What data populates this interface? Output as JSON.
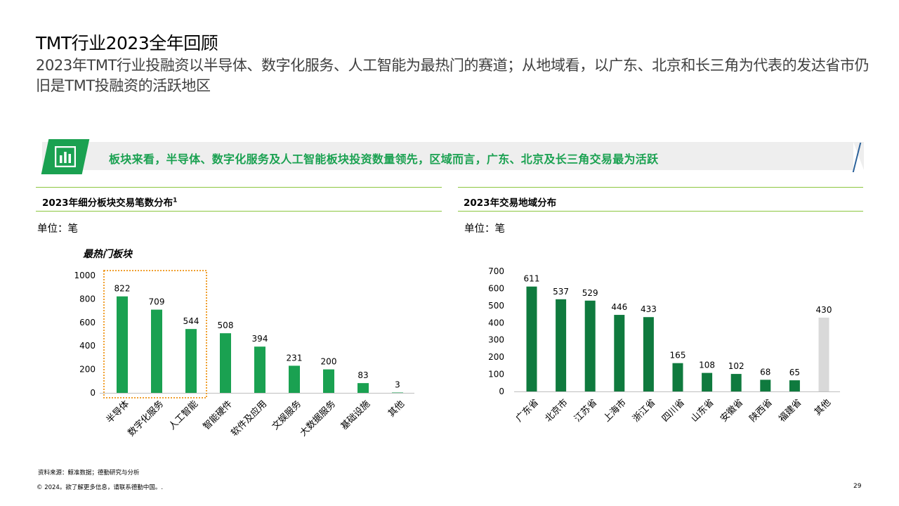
{
  "title": "TMT行业2023全年回顾",
  "subtitle": "2023年TMT行业投融资以半导体、数字化服务、人工智能为最热门的赛道；从地域看，以广东、北京和长三角为代表的发达省市仍旧是TMT投融资的活跃地区",
  "banner": {
    "text": "板块来看，半导体、数字化服务及人工智能板块投资数量领先，区域而言，广东、北京及长三角交易最为活跃",
    "icon": "bar-chart-icon"
  },
  "left_panel": {
    "title": "2023年细分板块交易笔数分布",
    "footnote_mark": "1",
    "unit": "单位：笔",
    "highlight_label": "最热门板块"
  },
  "right_panel": {
    "title": "2023年交易地域分布",
    "unit": "单位：笔"
  },
  "colors": {
    "brand_green": "#1aa151",
    "dark_green": "#0f7a3e",
    "other_gray": "#d9d9d9",
    "highlight_box": "#f0a030",
    "section_line": "#8cc63f"
  },
  "chart_data": [
    {
      "type": "bar",
      "title": "2023年细分板块交易笔数分布",
      "categories": [
        "半导体",
        "数字化服务",
        "人工智能",
        "智能硬件",
        "软件及应用",
        "文娱服务",
        "大数据服务",
        "基础设施",
        "其他"
      ],
      "values": [
        822,
        709,
        544,
        508,
        394,
        231,
        200,
        83,
        3
      ],
      "ylim": [
        0,
        1000
      ],
      "yticks": [
        0,
        200,
        400,
        600,
        800,
        1000
      ],
      "grid": false,
      "highlight": {
        "label": "最热门板块",
        "categories": [
          "半导体",
          "数字化服务",
          "人工智能"
        ]
      }
    },
    {
      "type": "bar",
      "title": "2023年交易地域分布",
      "categories": [
        "广东省",
        "北京市",
        "江苏省",
        "上海市",
        "浙江省",
        "四川省",
        "山东省",
        "安徽省",
        "陕西省",
        "福建省",
        "其他"
      ],
      "values": [
        611,
        537,
        529,
        446,
        433,
        165,
        108,
        102,
        68,
        65,
        430
      ],
      "ylim": [
        0,
        700
      ],
      "yticks": [
        0,
        100,
        200,
        300,
        400,
        500,
        600,
        700
      ],
      "grid": false
    }
  ],
  "footer": {
    "source": "资料来源：鲸准数据；德勤研究与分析",
    "copyright": "© 2024。欲了解更多信息，请联系德勤中国。.",
    "page": "29"
  }
}
